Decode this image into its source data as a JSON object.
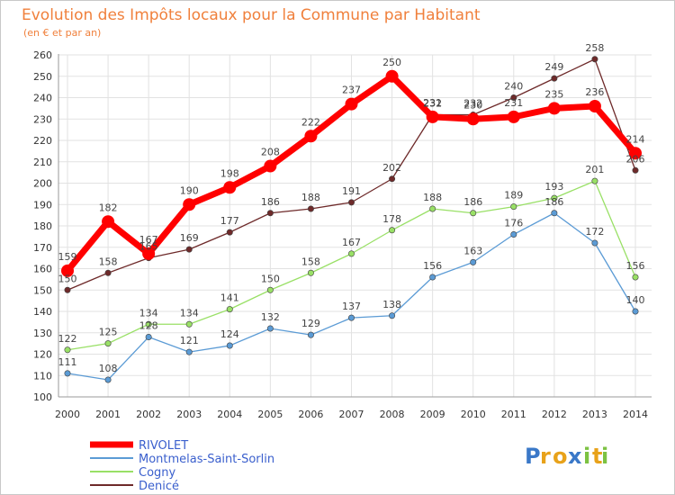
{
  "chart_data": {
    "type": "line",
    "title": "Evolution des Impôts locaux pour la Commune par Habitant",
    "subtitle": "(en € et par an)",
    "x": [
      "2000",
      "2001",
      "2002",
      "2003",
      "2004",
      "2005",
      "2006",
      "2007",
      "2008",
      "2009",
      "2010",
      "2011",
      "2012",
      "2013",
      "2014"
    ],
    "ylim": [
      100,
      260
    ],
    "yticks": [
      100,
      110,
      120,
      130,
      140,
      150,
      160,
      170,
      180,
      190,
      200,
      210,
      220,
      230,
      240,
      250,
      260
    ],
    "grid": true,
    "legend_position": "bottom-left",
    "series": [
      {
        "name": "RIVOLET",
        "color": "#ff0000",
        "values": [
          159,
          182,
          167,
          190,
          198,
          208,
          222,
          237,
          250,
          231,
          230,
          231,
          235,
          236,
          214
        ]
      },
      {
        "name": "Montmelas-Saint-Sorlin",
        "color": "#5b9bd5",
        "values": [
          111,
          108,
          128,
          121,
          124,
          132,
          129,
          137,
          138,
          156,
          163,
          176,
          186,
          172,
          140
        ]
      },
      {
        "name": "Cogny",
        "color": "#99e066",
        "values": [
          122,
          125,
          134,
          134,
          141,
          150,
          158,
          167,
          178,
          188,
          186,
          189,
          193,
          201,
          156
        ]
      },
      {
        "name": "Denicé",
        "color": "#6e2a2a",
        "values": [
          150,
          158,
          165,
          169,
          177,
          186,
          188,
          191,
          202,
          232,
          232,
          240,
          249,
          258,
          206
        ]
      }
    ]
  },
  "brand": {
    "letters": [
      "P",
      "r",
      "o",
      "x",
      "i",
      "t",
      "i"
    ],
    "colors": [
      "#3a78c8",
      "#e8a21a",
      "#e8a21a",
      "#3a78c8",
      "#7cc242",
      "#e8a21a",
      "#7cc242"
    ]
  }
}
